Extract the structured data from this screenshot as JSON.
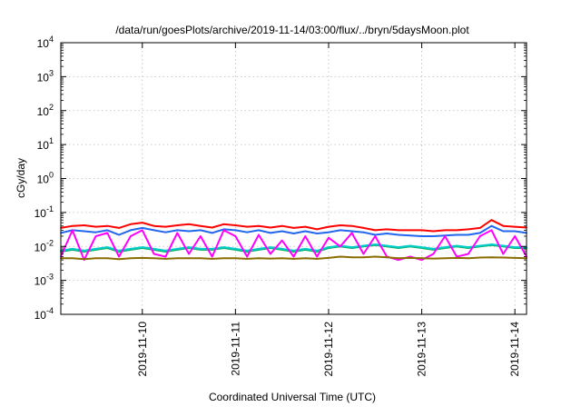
{
  "chart_data": {
    "type": "line",
    "title": "/data/run/goesPlots/archive/2019-11-14/03:00/flux/../bryn/5daysMoon.plot",
    "xlabel": "Coordinated Universal Time (UTC)",
    "ylabel": "cGy/day",
    "y_scale": "log",
    "ylim": [
      0.0001,
      10000
    ],
    "xlim": [
      "2019-11-09T03:00",
      "2019-11-14T03:00"
    ],
    "grid": true,
    "y_ticks": [
      {
        "base": "10",
        "exp": "-4",
        "value": 0.0001
      },
      {
        "base": "10",
        "exp": "-3",
        "value": 0.001
      },
      {
        "base": "10",
        "exp": "-2",
        "value": 0.01
      },
      {
        "base": "10",
        "exp": "-1",
        "value": 0.1
      },
      {
        "base": "10",
        "exp": "0",
        "value": 1
      },
      {
        "base": "10",
        "exp": "1",
        "value": 10
      },
      {
        "base": "10",
        "exp": "2",
        "value": 100
      },
      {
        "base": "10",
        "exp": "3",
        "value": 1000
      },
      {
        "base": "10",
        "exp": "4",
        "value": 10000
      }
    ],
    "x_ticks": [
      {
        "label": "2019-11-10",
        "x": "2019-11-10T00:00"
      },
      {
        "label": "2019-11-11",
        "x": "2019-11-11T00:00"
      },
      {
        "label": "2019-11-12",
        "x": "2019-11-12T00:00"
      },
      {
        "label": "2019-11-13",
        "x": "2019-11-13T00:00"
      },
      {
        "label": "2019-11-14",
        "x": "2019-11-14T00:00"
      }
    ],
    "x": [
      "2019-11-09T03:00",
      "2019-11-09T06:00",
      "2019-11-09T09:00",
      "2019-11-09T12:00",
      "2019-11-09T15:00",
      "2019-11-09T18:00",
      "2019-11-09T21:00",
      "2019-11-10T00:00",
      "2019-11-10T03:00",
      "2019-11-10T06:00",
      "2019-11-10T09:00",
      "2019-11-10T12:00",
      "2019-11-10T15:00",
      "2019-11-10T18:00",
      "2019-11-10T21:00",
      "2019-11-11T00:00",
      "2019-11-11T03:00",
      "2019-11-11T06:00",
      "2019-11-11T09:00",
      "2019-11-11T12:00",
      "2019-11-11T15:00",
      "2019-11-11T18:00",
      "2019-11-11T21:00",
      "2019-11-12T00:00",
      "2019-11-12T03:00",
      "2019-11-12T06:00",
      "2019-11-12T09:00",
      "2019-11-12T12:00",
      "2019-11-12T15:00",
      "2019-11-12T18:00",
      "2019-11-12T21:00",
      "2019-11-13T00:00",
      "2019-11-13T03:00",
      "2019-11-13T06:00",
      "2019-11-13T09:00",
      "2019-11-13T12:00",
      "2019-11-13T15:00",
      "2019-11-13T18:00",
      "2019-11-13T21:00",
      "2019-11-14T00:00",
      "2019-11-14T03:00"
    ],
    "series": [
      {
        "color": "#00b060",
        "values": [
          0.007,
          0.008,
          0.007,
          0.008,
          0.009,
          0.007,
          0.008,
          0.009,
          0.008,
          0.007,
          0.008,
          0.009,
          0.008,
          0.008,
          0.009,
          0.008,
          0.007,
          0.008,
          0.009,
          0.008,
          0.007,
          0.008,
          0.007,
          0.009,
          0.01,
          0.009,
          0.01,
          0.011,
          0.01,
          0.009,
          0.01,
          0.009,
          0.008,
          0.009,
          0.01,
          0.009,
          0.01,
          0.011,
          0.01,
          0.009,
          0.009
        ]
      },
      {
        "color": "#00cccc",
        "values": [
          0.0075,
          0.0085,
          0.0075,
          0.0085,
          0.0095,
          0.0075,
          0.0085,
          0.0095,
          0.0085,
          0.0075,
          0.0085,
          0.0095,
          0.0085,
          0.0085,
          0.0095,
          0.0085,
          0.0075,
          0.0085,
          0.0095,
          0.0085,
          0.0075,
          0.0085,
          0.0075,
          0.0095,
          0.0105,
          0.0095,
          0.0105,
          0.0115,
          0.0105,
          0.0095,
          0.0105,
          0.0095,
          0.0085,
          0.0095,
          0.0105,
          0.0095,
          0.0105,
          0.0115,
          0.0105,
          0.0095,
          0.0095
        ]
      },
      {
        "color": "#ff0000",
        "values": [
          0.035,
          0.04,
          0.042,
          0.038,
          0.04,
          0.035,
          0.045,
          0.05,
          0.04,
          0.038,
          0.042,
          0.045,
          0.04,
          0.036,
          0.045,
          0.042,
          0.038,
          0.04,
          0.036,
          0.04,
          0.035,
          0.038,
          0.032,
          0.038,
          0.042,
          0.04,
          0.035,
          0.03,
          0.032,
          0.03,
          0.03,
          0.03,
          0.028,
          0.03,
          0.03,
          0.032,
          0.035,
          0.06,
          0.04,
          0.038,
          0.036
        ]
      },
      {
        "color": "#2266ee",
        "values": [
          0.025,
          0.03,
          0.028,
          0.026,
          0.03,
          0.022,
          0.03,
          0.035,
          0.03,
          0.026,
          0.03,
          0.028,
          0.03,
          0.025,
          0.032,
          0.03,
          0.026,
          0.03,
          0.025,
          0.028,
          0.024,
          0.028,
          0.024,
          0.026,
          0.03,
          0.028,
          0.026,
          0.022,
          0.024,
          0.022,
          0.021,
          0.02,
          0.02,
          0.021,
          0.022,
          0.022,
          0.025,
          0.04,
          0.028,
          0.028,
          0.025
        ]
      },
      {
        "color": "#ff00ff",
        "values": [
          0.005,
          0.03,
          0.004,
          0.02,
          0.025,
          0.005,
          0.02,
          0.03,
          0.006,
          0.005,
          0.025,
          0.006,
          0.02,
          0.005,
          0.03,
          0.02,
          0.005,
          0.022,
          0.006,
          0.015,
          0.005,
          0.02,
          0.005,
          0.018,
          0.01,
          0.025,
          0.006,
          0.02,
          0.005,
          0.004,
          0.005,
          0.004,
          0.006,
          0.02,
          0.005,
          0.006,
          0.02,
          0.03,
          0.006,
          0.02,
          0.005
        ]
      },
      {
        "color": "#8a6d00",
        "values": [
          0.0045,
          0.0045,
          0.0042,
          0.0045,
          0.0045,
          0.0042,
          0.0045,
          0.0046,
          0.0045,
          0.0043,
          0.0045,
          0.0045,
          0.0045,
          0.0043,
          0.0045,
          0.0045,
          0.0043,
          0.0045,
          0.0044,
          0.0045,
          0.0043,
          0.0045,
          0.0043,
          0.0046,
          0.005,
          0.0048,
          0.0048,
          0.005,
          0.0048,
          0.0045,
          0.0046,
          0.0045,
          0.0044,
          0.0045,
          0.0046,
          0.0045,
          0.0047,
          0.0048,
          0.0047,
          0.0046,
          0.0045
        ]
      }
    ]
  }
}
